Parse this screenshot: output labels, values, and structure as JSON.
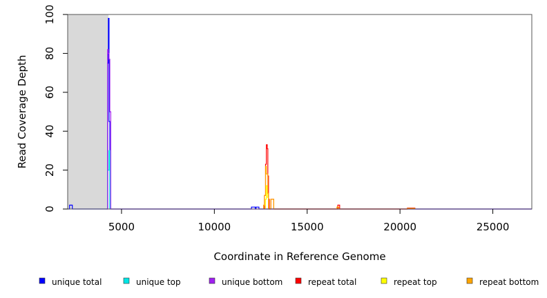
{
  "chart_data": {
    "type": "line",
    "title": "",
    "xlabel": "Coordinate in Reference Genome",
    "ylabel": "Read Coverage Depth",
    "xlim": [
      2100,
      27100
    ],
    "ylim": [
      0,
      100
    ],
    "x_ticks": [
      5000,
      10000,
      15000,
      20000,
      25000
    ],
    "y_ticks": [
      0,
      20,
      40,
      60,
      80,
      100
    ],
    "shaded_region": {
      "x": [
        2100,
        4300
      ],
      "color": "#d9d9d9"
    },
    "grid": false,
    "legend_position": "bottom",
    "series": [
      {
        "name": "unique total",
        "color": "#0000ff",
        "points": [
          [
            2100,
            0
          ],
          [
            2200,
            0
          ],
          [
            2200,
            2
          ],
          [
            2350,
            2
          ],
          [
            2350,
            0
          ],
          [
            4250,
            0
          ],
          [
            4250,
            75
          ],
          [
            4290,
            75
          ],
          [
            4290,
            98
          ],
          [
            4330,
            98
          ],
          [
            4330,
            45
          ],
          [
            4370,
            45
          ],
          [
            4370,
            0
          ],
          [
            12000,
            0
          ],
          [
            12000,
            1
          ],
          [
            12200,
            1
          ],
          [
            12200,
            0
          ],
          [
            12250,
            0
          ],
          [
            12250,
            1
          ],
          [
            12400,
            1
          ],
          [
            12400,
            0
          ],
          [
            27100,
            0
          ]
        ]
      },
      {
        "name": "unique top",
        "color": "#00e5e5",
        "points": [
          [
            4250,
            0
          ],
          [
            4250,
            20
          ],
          [
            4330,
            20
          ],
          [
            4330,
            30
          ],
          [
            4370,
            30
          ],
          [
            4370,
            0
          ]
        ]
      },
      {
        "name": "unique bottom",
        "color": "#a020f0",
        "points": [
          [
            4200,
            0
          ],
          [
            4250,
            0
          ],
          [
            4250,
            82
          ],
          [
            4290,
            82
          ],
          [
            4290,
            80
          ],
          [
            4330,
            80
          ],
          [
            4330,
            77
          ],
          [
            4370,
            77
          ],
          [
            4370,
            50
          ],
          [
            4420,
            50
          ],
          [
            4420,
            0
          ],
          [
            27100,
            0
          ]
        ]
      },
      {
        "name": "repeat total",
        "color": "#ff0000",
        "points": [
          [
            12700,
            0
          ],
          [
            12700,
            7
          ],
          [
            12760,
            7
          ],
          [
            12760,
            23
          ],
          [
            12800,
            23
          ],
          [
            12800,
            33
          ],
          [
            12850,
            33
          ],
          [
            12850,
            31
          ],
          [
            12880,
            31
          ],
          [
            12880,
            17
          ],
          [
            12920,
            17
          ],
          [
            12920,
            5
          ],
          [
            12960,
            5
          ],
          [
            12960,
            0
          ],
          [
            13050,
            0
          ],
          [
            13050,
            5
          ],
          [
            13200,
            5
          ],
          [
            13200,
            0
          ],
          [
            16650,
            0
          ],
          [
            16650,
            2
          ],
          [
            16750,
            2
          ],
          [
            16750,
            0
          ],
          [
            20400,
            0
          ],
          [
            20400,
            0.5
          ],
          [
            20800,
            0.5
          ],
          [
            20800,
            0
          ]
        ]
      },
      {
        "name": "repeat top",
        "color": "#ffff00",
        "points": [
          [
            12750,
            0
          ],
          [
            12750,
            5
          ],
          [
            12800,
            5
          ],
          [
            12800,
            12
          ],
          [
            12860,
            12
          ],
          [
            12860,
            6
          ],
          [
            12920,
            6
          ],
          [
            12920,
            0
          ]
        ]
      },
      {
        "name": "repeat bottom",
        "color": "#ffa500",
        "points": [
          [
            12650,
            0
          ],
          [
            12650,
            2
          ],
          [
            12700,
            2
          ],
          [
            12700,
            7
          ],
          [
            12760,
            7
          ],
          [
            12760,
            22
          ],
          [
            12800,
            22
          ],
          [
            12800,
            18
          ],
          [
            12880,
            18
          ],
          [
            12880,
            8
          ],
          [
            12920,
            8
          ],
          [
            12920,
            0
          ],
          [
            13050,
            0
          ],
          [
            13050,
            5
          ],
          [
            13200,
            5
          ],
          [
            13200,
            0
          ],
          [
            16600,
            0
          ],
          [
            16600,
            1
          ],
          [
            16700,
            1
          ],
          [
            16700,
            0
          ],
          [
            20400,
            0
          ],
          [
            20400,
            0.3
          ],
          [
            20800,
            0.3
          ],
          [
            20800,
            0
          ]
        ]
      }
    ]
  }
}
